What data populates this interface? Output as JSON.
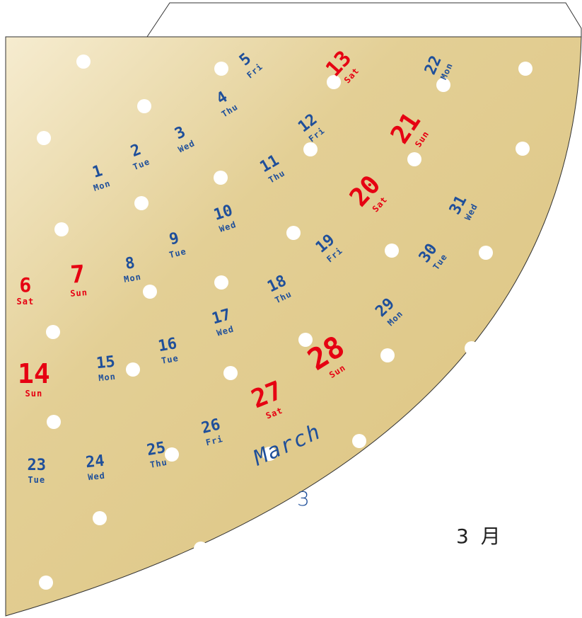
{
  "calendar": {
    "month_en": "March",
    "month_num": "3",
    "month_jp": "3 月",
    "colors": {
      "weekday": "#1f4f9a",
      "weekend": "#e60012",
      "gold_light": "#f6ecd0",
      "gold": "#dcc37f",
      "outline": "#333333",
      "hole": "#ffffff"
    },
    "days": [
      {
        "n": "1",
        "w": "Mon"
      },
      {
        "n": "2",
        "w": "Tue"
      },
      {
        "n": "3",
        "w": "Wed"
      },
      {
        "n": "4",
        "w": "Thu"
      },
      {
        "n": "5",
        "w": "Fri"
      },
      {
        "n": "6",
        "w": "Sat"
      },
      {
        "n": "7",
        "w": "Sun"
      },
      {
        "n": "8",
        "w": "Mon"
      },
      {
        "n": "9",
        "w": "Tue"
      },
      {
        "n": "10",
        "w": "Wed"
      },
      {
        "n": "11",
        "w": "Thu"
      },
      {
        "n": "12",
        "w": "Fri"
      },
      {
        "n": "13",
        "w": "Sat"
      },
      {
        "n": "14",
        "w": "Sun"
      },
      {
        "n": "15",
        "w": "Mon"
      },
      {
        "n": "16",
        "w": "Tue"
      },
      {
        "n": "17",
        "w": "Wed"
      },
      {
        "n": "18",
        "w": "Thu"
      },
      {
        "n": "19",
        "w": "Fri"
      },
      {
        "n": "20",
        "w": "Sat"
      },
      {
        "n": "21",
        "w": "Sun"
      },
      {
        "n": "22",
        "w": "Mon"
      },
      {
        "n": "23",
        "w": "Tue"
      },
      {
        "n": "24",
        "w": "Wed"
      },
      {
        "n": "25",
        "w": "Thu"
      },
      {
        "n": "26",
        "w": "Fri"
      },
      {
        "n": "27",
        "w": "Sat"
      },
      {
        "n": "28",
        "w": "Sun"
      },
      {
        "n": "29",
        "w": "Mon"
      },
      {
        "n": "30",
        "w": "Tue"
      },
      {
        "n": "31",
        "w": "Wed"
      }
    ]
  }
}
